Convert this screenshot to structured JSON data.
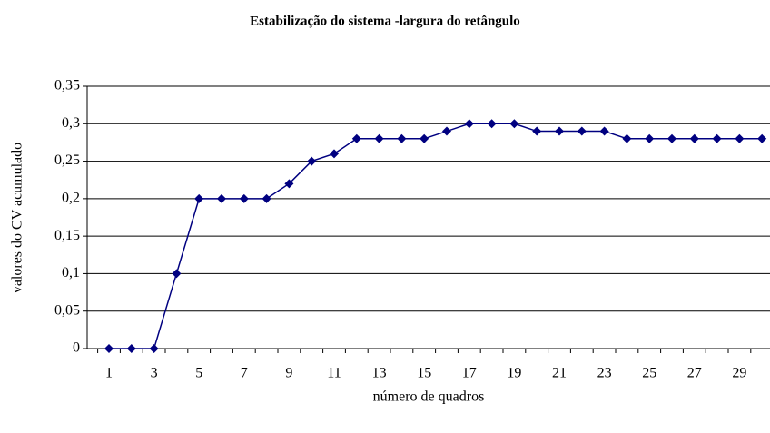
{
  "chart_data": {
    "type": "line",
    "title": "Estabilização do sistema -largura do retângulo",
    "x_label": "número de quadros",
    "y_label": "valores do CV acumulado",
    "categories": [
      "1",
      null,
      "3",
      null,
      "5",
      null,
      "7",
      null,
      "9",
      null,
      "11",
      null,
      "13",
      null,
      "15",
      null,
      "17",
      null,
      "19",
      null,
      "21",
      null,
      "23",
      null,
      "25",
      null,
      "27",
      null,
      "29",
      null
    ],
    "series": [
      {
        "name": "CV",
        "color": "#000080",
        "values": [
          0,
          0,
          0,
          0.1,
          0.2,
          0.2,
          0.2,
          0.2,
          0.22,
          0.25,
          0.26,
          0.28,
          0.28,
          0.28,
          0.28,
          0.29,
          0.3,
          0.3,
          0.3,
          0.29,
          0.29,
          0.29,
          0.29,
          0.28,
          0.28,
          0.28,
          0.28,
          0.28,
          0.28,
          0.28
        ]
      }
    ],
    "ylim": [
      0,
      0.35
    ],
    "yticks": [
      0,
      {
        "value": 0.05,
        "label": "0,05"
      },
      {
        "value": 0.1,
        "label": "0,1"
      },
      {
        "value": 0.15,
        "label": "0,15"
      },
      {
        "value": 0.2,
        "label": "0,2"
      },
      {
        "value": 0.25,
        "label": "0,25"
      },
      {
        "value": 0.3,
        "label": "0,3"
      },
      {
        "value": 0.35,
        "label": "0,35"
      }
    ],
    "grid": true
  }
}
